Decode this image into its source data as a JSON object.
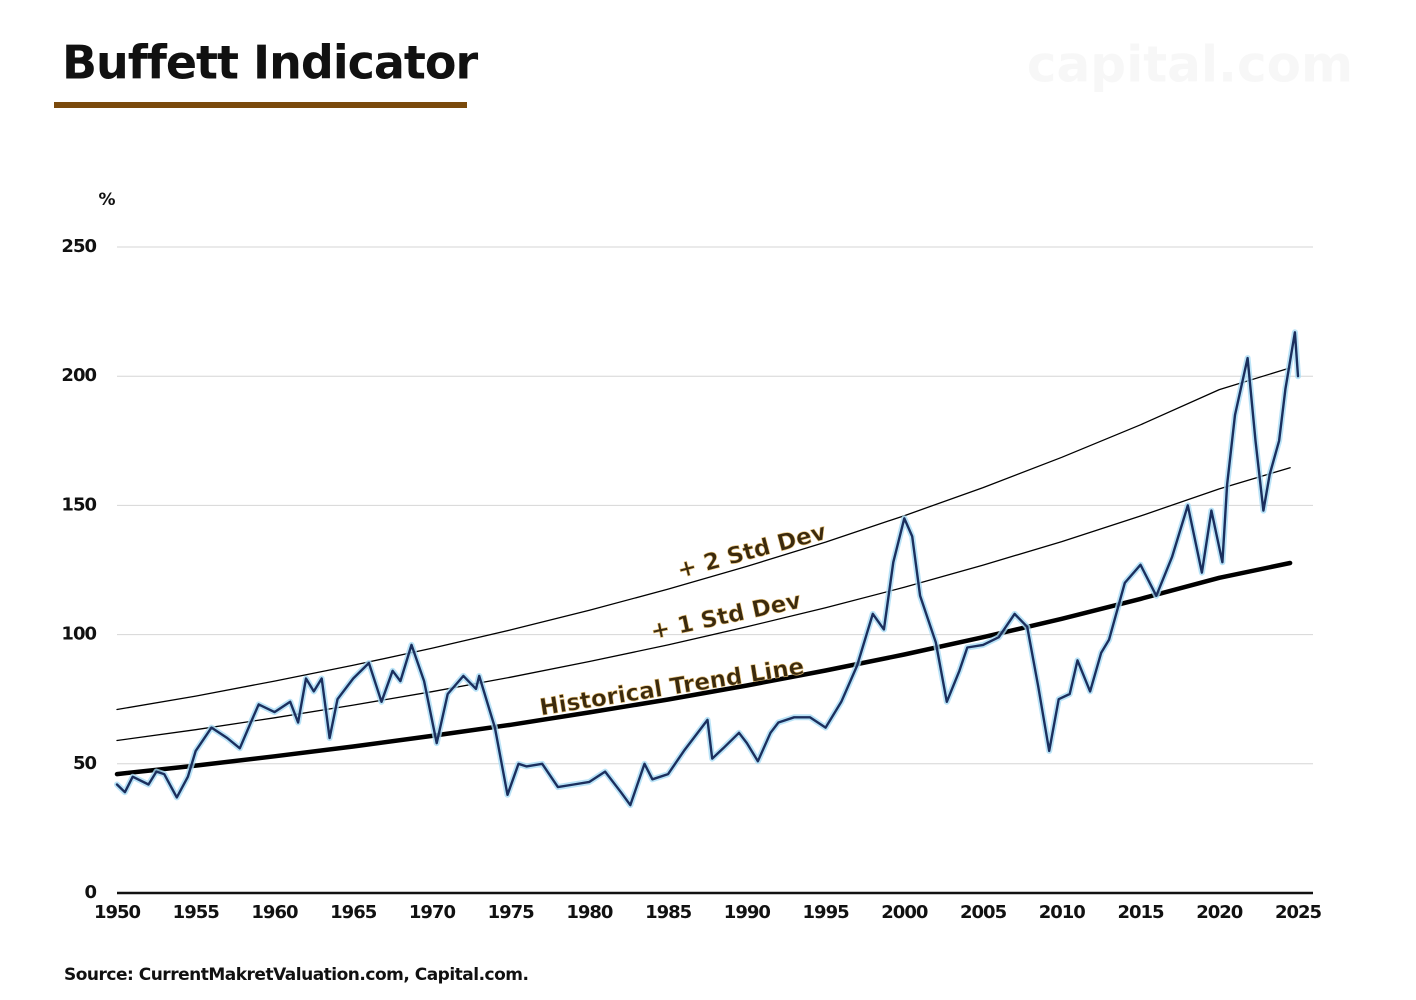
{
  "chart_data": {
    "type": "line",
    "title": "Buffett Indicator",
    "watermark": "capital.com",
    "y_label": "%",
    "source": "Source: CurrentMakretValuation.com, Capital.com.",
    "annotations": [
      "+ 2 Std Dev",
      "+ 1 Std Dev",
      "Historical Trend Line"
    ],
    "xlim": [
      1950,
      2025
    ],
    "xticks": [
      1950,
      1955,
      1960,
      1965,
      1970,
      1975,
      1980,
      1985,
      1990,
      1995,
      2000,
      2005,
      2010,
      2015,
      2020,
      2025
    ],
    "ylim": [
      0,
      250
    ],
    "yticks": [
      0,
      50,
      100,
      150,
      200,
      250
    ],
    "grid": true,
    "series": [
      {
        "color": "#1b2f5e",
        "x": [
          1950,
          1950.5,
          1951,
          1952,
          1952.5,
          1953,
          1953.8,
          1954.5,
          1955,
          1956,
          1957,
          1957.8,
          1958.5,
          1959,
          1960,
          1961,
          1961.5,
          1962,
          1962.5,
          1963,
          1963.5,
          1964,
          1965,
          1966,
          1966.8,
          1967.5,
          1968,
          1968.7,
          1969.5,
          1970.3,
          1971,
          1972,
          1972.8,
          1973,
          1974,
          1974.8,
          1975.5,
          1976,
          1977,
          1978,
          1979,
          1980,
          1981,
          1982,
          1982.6,
          1983.5,
          1984,
          1985,
          1986,
          1987.5,
          1987.8,
          1988.5,
          1989.5,
          1990,
          1990.7,
          1991.5,
          1992,
          1993,
          1994,
          1995,
          1996,
          1997,
          1998,
          1998.7,
          1999.3,
          2000,
          2000.5,
          2001,
          2002,
          2002.7,
          2003.5,
          2004,
          2005,
          2006,
          2007,
          2007.8,
          2008.5,
          2009.2,
          2009.8,
          2010.5,
          2011,
          2011.8,
          2012.5,
          2013,
          2014,
          2015,
          2016,
          2017,
          2018,
          2018.9,
          2019.5,
          2020.2,
          2020.5,
          2021,
          2021.8,
          2022.3,
          2022.8,
          2023.2,
          2023.8,
          2024.2,
          2024.8,
          2025
        ],
        "values": [
          42,
          39,
          45,
          42,
          47,
          46,
          37,
          45,
          55,
          64,
          60,
          56,
          66,
          73,
          70,
          74,
          66,
          83,
          78,
          83,
          60,
          75,
          83,
          89,
          74,
          86,
          82,
          96,
          82,
          58,
          77,
          84,
          79,
          84,
          64,
          38,
          50,
          49,
          50,
          41,
          42,
          43,
          47,
          39,
          34,
          50,
          44,
          46,
          55,
          67,
          52,
          56,
          62,
          58,
          51,
          62,
          66,
          68,
          68,
          64,
          74,
          88,
          108,
          102,
          128,
          145,
          138,
          115,
          97,
          74,
          86,
          95,
          96,
          99,
          108,
          103,
          80,
          55,
          75,
          77,
          90,
          78,
          93,
          98,
          120,
          127,
          115,
          130,
          150,
          124,
          148,
          128,
          158,
          185,
          207,
          175,
          148,
          162,
          175,
          195,
          217,
          200
        ]
      },
      {
        "color": "#000000",
        "x": [
          1950,
          1955,
          1960,
          1965,
          1970,
          1975,
          1980,
          1985,
          1990,
          1995,
          2000,
          2005,
          2010,
          2015,
          2020,
          2024.5
        ],
        "values": [
          71,
          76.2,
          82,
          88.1,
          94.7,
          101.8,
          109.4,
          117.6,
          126.4,
          135.8,
          146,
          156.9,
          168.6,
          181.2,
          194.8,
          203.2
        ]
      },
      {
        "color": "#000000",
        "x": [
          1950,
          1955,
          1960,
          1965,
          1970,
          1975,
          1980,
          1985,
          1990,
          1995,
          2000,
          2005,
          2010,
          2015,
          2020,
          2024.5
        ],
        "values": [
          59,
          63.2,
          67.8,
          72.7,
          77.9,
          83.5,
          89.6,
          96,
          103,
          110.4,
          118.3,
          126.9,
          136,
          145.9,
          156.4,
          164.6
        ]
      },
      {
        "color": "#000000",
        "x": [
          1950,
          1955,
          1960,
          1965,
          1970,
          1975,
          1980,
          1985,
          1990,
          1995,
          2000,
          2005,
          2010,
          2015,
          2020,
          2024.5
        ],
        "values": [
          46,
          49.3,
          52.9,
          56.7,
          60.8,
          65.1,
          69.9,
          74.9,
          80.3,
          86.1,
          92.3,
          99,
          106.1,
          113.8,
          122,
          127.7
        ]
      }
    ]
  }
}
